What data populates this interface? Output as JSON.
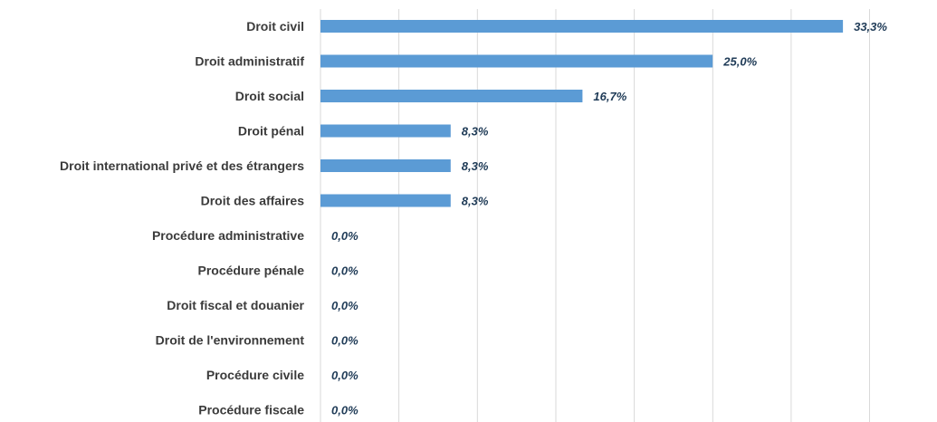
{
  "chart_data": {
    "type": "bar",
    "orientation": "horizontal",
    "categories": [
      "Droit civil",
      "Droit administratif",
      "Droit social",
      "Droit pénal",
      "Droit international privé et des étrangers",
      "Droit des affaires",
      "Procédure administrative",
      "Procédure pénale",
      "Droit fiscal et douanier",
      "Droit de l'environnement",
      "Procédure civile",
      "Procédure fiscale"
    ],
    "values": [
      33.3,
      25.0,
      16.7,
      8.3,
      8.3,
      8.3,
      0.0,
      0.0,
      0.0,
      0.0,
      0.0,
      0.0
    ],
    "value_labels": [
      "33,3%",
      "25,0%",
      "16,7%",
      "8,3%",
      "8,3%",
      "8,3%",
      "0,0%",
      "0,0%",
      "0,0%",
      "0,0%",
      "0,0%",
      "0,0%"
    ],
    "title": "",
    "xlabel": "",
    "ylabel": "",
    "xlim": [
      0,
      35
    ],
    "grid": true,
    "legend": "none",
    "bar_color": "#5b9bd5",
    "label_color": "#3b3b3b",
    "value_label_color": "#1f3b57"
  }
}
